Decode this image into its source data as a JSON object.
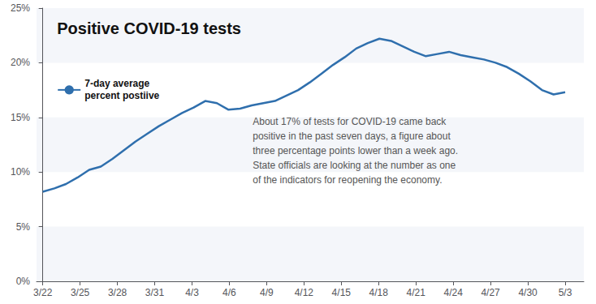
{
  "chart_data": {
    "type": "line",
    "title": "Positive COVID-19 tests",
    "annotation": "About 17% of tests for COVID-19 came back\npositive in the past seven days, a figure about\nthree percentage points lower than a week ago.\nState officials are looking at the number as one\nof the indicators for reopening the economy.",
    "x": [
      0,
      0.9333333333333333,
      1.8666666666666667,
      2.8,
      3.7333333333333334,
      4.666666666666667,
      5.6,
      6.533333333333333,
      7.466666666666667,
      8.4,
      9.333333333333334,
      10.266666666666667,
      11.2,
      12.133333333333333,
      13.066666666666666,
      14,
      14.933333333333334,
      15.866666666666667,
      16.8,
      17.733333333333334,
      18.666666666666668,
      19.6,
      20.533333333333335,
      21.466666666666665,
      22.4,
      23.333333333333332,
      24.266666666666666,
      25.2,
      26.133333333333333,
      27.066666666666666,
      28,
      28.933333333333334,
      29.866666666666667,
      30.8,
      31.733333333333334,
      32.666666666666664,
      33.6,
      34.53333333333333,
      35.46666666666667,
      36.4,
      37.333333333333336,
      38.266666666666666,
      39.2,
      40.13333333333333,
      41.06666666666667,
      42
    ],
    "series": [
      {
        "name": "7-day average\npercent postiive",
        "color": "#2f6fad",
        "values": [
          8.2,
          8.5,
          8.9,
          9.5,
          10.2,
          10.5,
          11.2,
          12.0,
          12.8,
          13.5,
          14.2,
          14.8,
          15.4,
          15.9,
          16.5,
          16.3,
          15.7,
          15.8,
          16.1,
          16.3,
          16.5,
          17.0,
          17.5,
          18.2,
          19.0,
          19.8,
          20.5,
          21.3,
          21.8,
          22.2,
          22.0,
          21.5,
          21.0,
          20.6,
          20.8,
          21.0,
          20.7,
          20.5,
          20.3,
          20.0,
          19.6,
          19.0,
          18.3,
          17.5,
          17.1,
          17.3
        ]
      }
    ],
    "xlim": [
      -0.5,
      43.5
    ],
    "xticks": [
      {
        "value": 0,
        "label": "3/22"
      },
      {
        "value": 3,
        "label": "3/25"
      },
      {
        "value": 6,
        "label": "3/28"
      },
      {
        "value": 9,
        "label": "3/31"
      },
      {
        "value": 12,
        "label": "4/3"
      },
      {
        "value": 15,
        "label": "4/6"
      },
      {
        "value": 18,
        "label": "4/9"
      },
      {
        "value": 21,
        "label": "4/12"
      },
      {
        "value": 24,
        "label": "4/15"
      },
      {
        "value": 27,
        "label": "4/18"
      },
      {
        "value": 30,
        "label": "4/21"
      },
      {
        "value": 33,
        "label": "4/24"
      },
      {
        "value": 36,
        "label": "4/27"
      },
      {
        "value": 39,
        "label": "4/30"
      },
      {
        "value": 42,
        "label": "5/3"
      }
    ],
    "ylim": [
      0,
      25
    ],
    "yticks": [
      {
        "value": 0,
        "label": "0%"
      },
      {
        "value": 5,
        "label": "5%"
      },
      {
        "value": 10,
        "label": "10%"
      },
      {
        "value": 15,
        "label": "15%"
      },
      {
        "value": 20,
        "label": "20%"
      },
      {
        "value": 25,
        "label": "25%"
      }
    ],
    "grid": false,
    "legend": "upper left"
  }
}
